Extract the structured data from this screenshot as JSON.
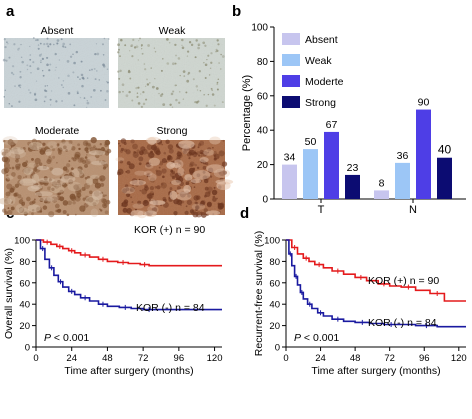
{
  "panel_letters": {
    "a": "a",
    "b": "b",
    "c": "c",
    "d": "d"
  },
  "panel_a": {
    "images": [
      {
        "label": "Absent",
        "base": "#c9d3d7",
        "speck": "#7a8a98"
      },
      {
        "label": "Weak",
        "base": "#cfd6d0",
        "speck": "#8a8a70"
      },
      {
        "label": "Moderate",
        "base": "#b89070",
        "speck": "#7a4a28"
      },
      {
        "label": "Strong",
        "base": "#a86a46",
        "speck": "#6a3018"
      }
    ]
  },
  "chart_data": [
    {
      "type": "bar",
      "ylabel": "Percentage (%)",
      "ylim": [
        0,
        100
      ],
      "yticks": [
        0,
        20,
        40,
        60,
        80,
        100
      ],
      "categories": [
        "T",
        "N"
      ],
      "series": [
        {
          "name": "Absent",
          "color": "#c7c5ee",
          "values": [
            20,
            5
          ],
          "labels": [
            "34",
            "8"
          ]
        },
        {
          "name": "Weak",
          "color": "#9cc6f6",
          "values": [
            29,
            21
          ],
          "labels": [
            "50",
            "36"
          ]
        },
        {
          "name": "Moderte",
          "color": "#4e3ee6",
          "values": [
            39,
            52
          ],
          "labels": [
            "67",
            "90"
          ]
        },
        {
          "name": "Strong",
          "color": "#0c0c72",
          "values": [
            14,
            24
          ],
          "labels": [
            "23",
            "40"
          ]
        }
      ],
      "legend_position": "top-left"
    },
    {
      "type": "line",
      "ylabel": "Overall survival (%)",
      "xlabel": "Time after surgery (months)",
      "xlim": [
        0,
        125
      ],
      "ylim": [
        0,
        100
      ],
      "xticks": [
        0,
        24,
        48,
        72,
        96,
        120
      ],
      "yticks": [
        0,
        20,
        40,
        60,
        80,
        100
      ],
      "annotation": "P < 0.001",
      "series": [
        {
          "name": "KOR (+) n = 90",
          "color": "#e41a1c",
          "x": [
            0,
            5,
            10,
            14,
            18,
            22,
            26,
            30,
            36,
            42,
            48,
            55,
            62,
            70,
            76,
            125
          ],
          "y": [
            100,
            98,
            96,
            94,
            92,
            90,
            88,
            86,
            84,
            82,
            80,
            79,
            78,
            77,
            76,
            76
          ]
        },
        {
          "name": "KOR (-) n = 84",
          "color": "#1a1aa0",
          "x": [
            0,
            3,
            6,
            9,
            12,
            15,
            18,
            22,
            26,
            30,
            36,
            42,
            48,
            56,
            64,
            72,
            80,
            125
          ],
          "y": [
            100,
            92,
            82,
            74,
            67,
            61,
            56,
            52,
            49,
            46,
            43,
            40,
            38,
            37,
            36,
            35,
            35,
            35
          ]
        }
      ]
    },
    {
      "type": "line",
      "ylabel": "Recurrent-free survival (%)",
      "xlabel": "Time after surgery (months)",
      "xlim": [
        0,
        125
      ],
      "ylim": [
        0,
        100
      ],
      "xticks": [
        0,
        24,
        48,
        72,
        96,
        120
      ],
      "yticks": [
        0,
        20,
        40,
        60,
        80,
        100
      ],
      "annotation": "P < 0.001",
      "series": [
        {
          "name": "KOR (+) n = 90",
          "color": "#e41a1c",
          "x": [
            0,
            4,
            8,
            12,
            16,
            20,
            26,
            32,
            40,
            48,
            56,
            64,
            72,
            80,
            90,
            100,
            110,
            125
          ],
          "y": [
            100,
            93,
            87,
            83,
            80,
            77,
            74,
            71,
            68,
            65,
            62,
            59,
            57,
            56,
            53,
            50,
            43,
            43
          ]
        },
        {
          "name": "KOR (-) n = 84",
          "color": "#1a1aa0",
          "x": [
            0,
            2,
            4,
            6,
            8,
            10,
            12,
            15,
            18,
            22,
            26,
            32,
            40,
            48,
            58,
            68,
            78,
            90,
            105,
            125
          ],
          "y": [
            100,
            87,
            76,
            66,
            58,
            51,
            45,
            40,
            36,
            32,
            29,
            26,
            24,
            23,
            22,
            21,
            21,
            20,
            19,
            19
          ]
        }
      ]
    }
  ]
}
